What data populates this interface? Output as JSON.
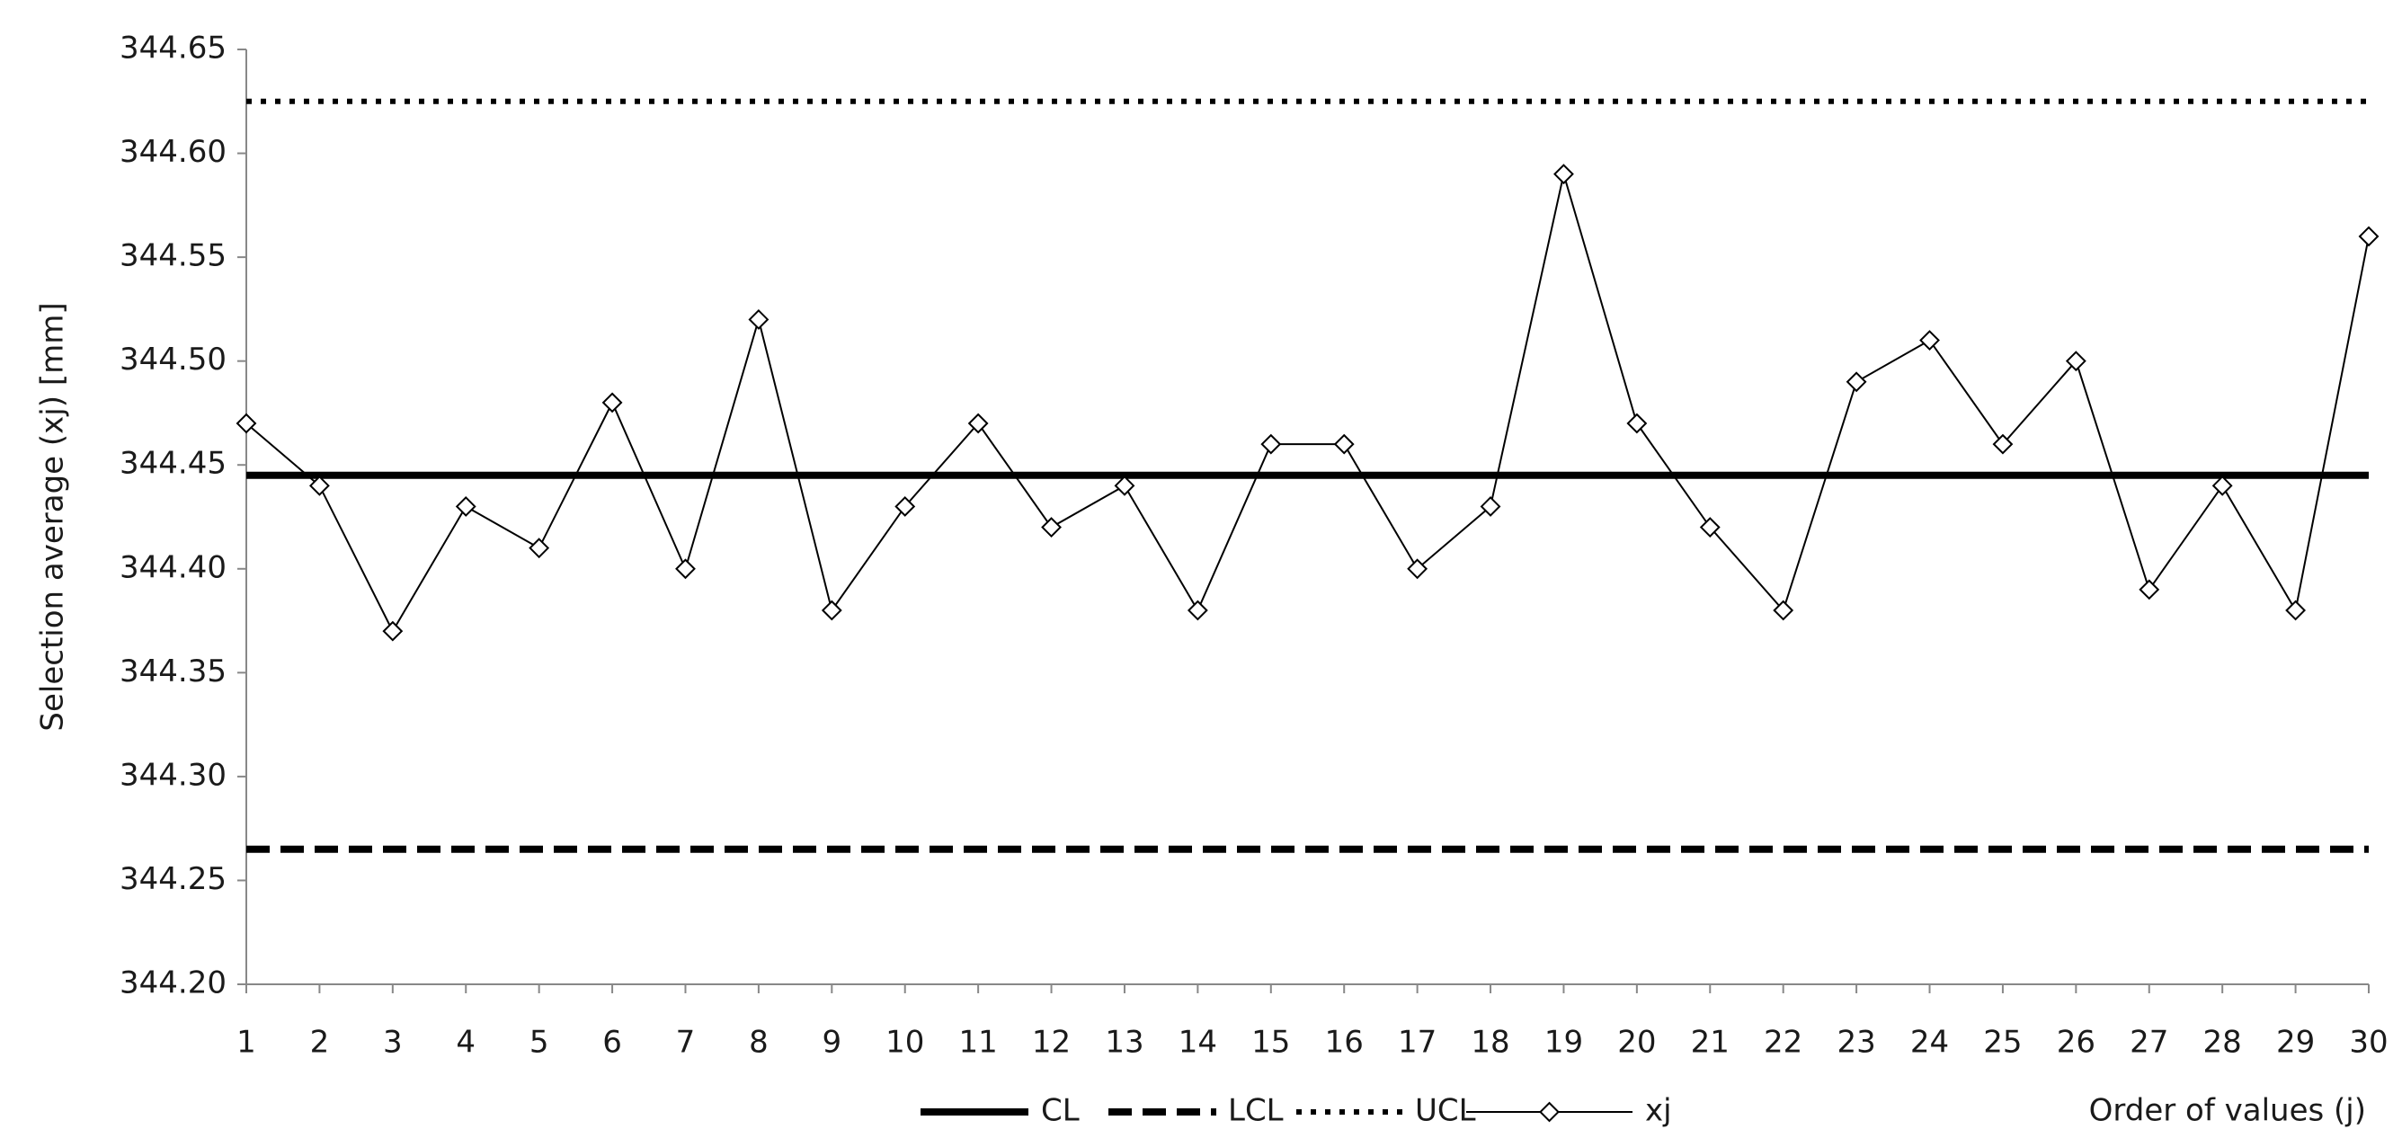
{
  "chart_data": {
    "type": "line",
    "x_label": "Order of values (j)",
    "y_label": "Selection average (xj) [mm]",
    "categories": [
      "1",
      "2",
      "3",
      "4",
      "5",
      "6",
      "7",
      "8",
      "9",
      "10",
      "11",
      "12",
      "13",
      "14",
      "15",
      "16",
      "17",
      "18",
      "19",
      "20",
      "21",
      "22",
      "23",
      "24",
      "25",
      "26",
      "27",
      "28",
      "29",
      "30"
    ],
    "ylim": [
      344.2,
      344.65
    ],
    "yticks": [
      {
        "value": 344.2,
        "label": "344.20"
      },
      344.25,
      {
        "value": 344.3,
        "label": "344.30"
      },
      344.35,
      {
        "value": 344.4,
        "label": "344.40"
      },
      344.45,
      {
        "value": 344.5,
        "label": "344.50"
      },
      344.55,
      {
        "value": 344.6,
        "label": "344.60"
      },
      344.65
    ],
    "grid": false,
    "legend": "bottom",
    "series": [
      {
        "name": "CL",
        "color": "#000000",
        "style": "solid",
        "values": [
          344.445,
          344.445,
          344.445,
          344.445,
          344.445,
          344.445,
          344.445,
          344.445,
          344.445,
          344.445,
          344.445,
          344.445,
          344.445,
          344.445,
          344.445,
          344.445,
          344.445,
          344.445,
          344.445,
          344.445,
          344.445,
          344.445,
          344.445,
          344.445,
          344.445,
          344.445,
          344.445,
          344.445,
          344.445,
          344.445
        ]
      },
      {
        "name": "LCL",
        "color": "#000000",
        "style": "dashed",
        "values": [
          344.265,
          344.265,
          344.265,
          344.265,
          344.265,
          344.265,
          344.265,
          344.265,
          344.265,
          344.265,
          344.265,
          344.265,
          344.265,
          344.265,
          344.265,
          344.265,
          344.265,
          344.265,
          344.265,
          344.265,
          344.265,
          344.265,
          344.265,
          344.265,
          344.265,
          344.265,
          344.265,
          344.265,
          344.265,
          344.265
        ]
      },
      {
        "name": "UCL",
        "color": "#000000",
        "style": "dotted",
        "values": [
          344.625,
          344.625,
          344.625,
          344.625,
          344.625,
          344.625,
          344.625,
          344.625,
          344.625,
          344.625,
          344.625,
          344.625,
          344.625,
          344.625,
          344.625,
          344.625,
          344.625,
          344.625,
          344.625,
          344.625,
          344.625,
          344.625,
          344.625,
          344.625,
          344.625,
          344.625,
          344.625,
          344.625,
          344.625,
          344.625
        ]
      },
      {
        "name": "xj",
        "color": "#000000",
        "style": "thin-marker",
        "values": [
          344.47,
          344.44,
          344.37,
          344.43,
          344.41,
          344.48,
          344.4,
          344.52,
          344.38,
          344.43,
          344.47,
          344.42,
          344.44,
          344.38,
          344.46,
          344.46,
          344.4,
          344.43,
          344.59,
          344.47,
          344.42,
          344.38,
          344.49,
          344.51,
          344.46,
          344.5,
          344.39,
          344.44,
          344.38,
          344.56
        ]
      }
    ]
  }
}
